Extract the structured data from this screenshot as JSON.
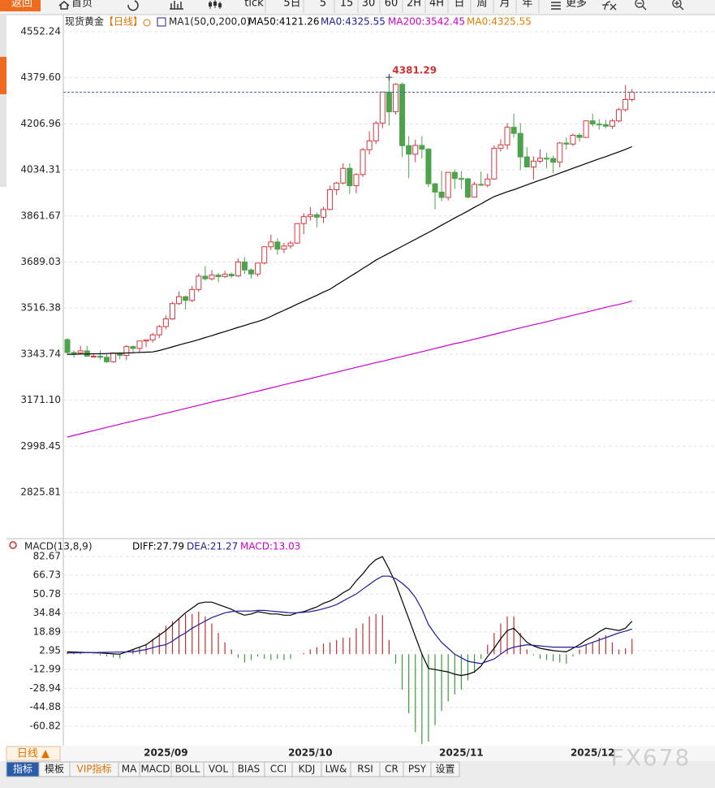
{
  "toolbar": {
    "back": "返回",
    "home": "首页",
    "buttons": [
      "tick",
      "5日",
      "5",
      "15",
      "30",
      "60",
      "2H",
      "4H",
      "日",
      "周",
      "月",
      "年"
    ],
    "more": "更多"
  },
  "chart_data": [
    {
      "type": "candlestick",
      "title": "现货黄金",
      "period": "【日线】",
      "indicator": "MA1(50,0,200,0)",
      "candles": {
        "open": [
          3398,
          3350,
          3348,
          3356,
          3336,
          3336,
          3332,
          3315,
          3348,
          3339,
          3372,
          3365,
          3393,
          3397,
          3416,
          3447,
          3476,
          3533,
          3559,
          3545,
          3586,
          3636,
          3626,
          3640,
          3634,
          3643,
          3637,
          3689,
          3659,
          3644,
          3685,
          3746,
          3764,
          3737,
          3749,
          3760,
          3833,
          3859,
          3866,
          3857,
          3886,
          3960,
          3985,
          4040,
          3975,
          4017,
          4110,
          4143,
          4209,
          4326,
          4252,
          4355,
          4125,
          4093,
          4126,
          4112,
          3982,
          3951,
          3931,
          4025,
          4002,
          4001,
          3932,
          3980,
          3977,
          4000,
          4115,
          4128,
          4194,
          4171,
          4083,
          4045,
          4067,
          4078,
          4077,
          4063,
          4135,
          4131,
          4164,
          4156,
          4218,
          4206,
          4204,
          4198,
          4218,
          4260,
          4298
        ],
        "high": [
          3404,
          3358,
          3375,
          3375,
          3345,
          3358,
          3345,
          3350,
          3351,
          3378,
          3376,
          3393,
          3398,
          3423,
          3453,
          3489,
          3540,
          3578,
          3563,
          3600,
          3646,
          3674,
          3658,
          3648,
          3656,
          3650,
          3703,
          3707,
          3665,
          3685,
          3749,
          3791,
          3778,
          3761,
          3768,
          3834,
          3872,
          3895,
          3875,
          3896,
          3975,
          3990,
          4059,
          4059,
          4022,
          4117,
          4179,
          4218,
          4327,
          4381.29,
          4359,
          4361,
          4161,
          4147,
          4161,
          4116,
          3986,
          4030,
          4025,
          4036,
          4030,
          4004,
          3990,
          4028,
          4020,
          4126,
          4149,
          4210,
          4245,
          4210,
          4120,
          4085,
          4111,
          4099,
          4088,
          4139,
          4156,
          4170,
          4172,
          4218,
          4245,
          4224,
          4222,
          4225,
          4266,
          4352,
          4337
        ],
        "low": [
          3341,
          3331,
          3343,
          3334,
          3330,
          3323,
          3311,
          3311,
          3325,
          3321,
          3351,
          3351,
          3370,
          3387,
          3403,
          3437,
          3472,
          3528,
          3511,
          3539,
          3577,
          3620,
          3620,
          3613,
          3630,
          3630,
          3633,
          3645,
          3627,
          3634,
          3680,
          3734,
          3717,
          3722,
          3739,
          3757,
          3793,
          3844,
          3819,
          3835,
          3883,
          3940,
          3980,
          3944,
          3947,
          4007,
          4092,
          4131,
          4191,
          4200,
          4242,
          4082,
          4003,
          4063,
          4077,
          3970,
          3886,
          3917,
          3920,
          3963,
          3962,
          3928,
          3930,
          3974,
          3969,
          3998,
          4103,
          4111,
          4155,
          4034,
          4045,
          3998,
          4060,
          4040,
          4022,
          4043,
          4110,
          4124,
          4140,
          4155,
          4196,
          4185,
          4190,
          4188,
          4212,
          4252,
          4290
        ],
        "close": [
          3350,
          3348,
          3356,
          3336,
          3336,
          3332,
          3315,
          3348,
          3339,
          3372,
          3365,
          3393,
          3397,
          3416,
          3447,
          3476,
          3533,
          3559,
          3545,
          3586,
          3636,
          3626,
          3640,
          3634,
          3643,
          3637,
          3689,
          3659,
          3644,
          3685,
          3746,
          3764,
          3737,
          3749,
          3760,
          3833,
          3859,
          3866,
          3857,
          3886,
          3960,
          3985,
          4040,
          3975,
          4017,
          4110,
          4143,
          4209,
          4326,
          4252,
          4355,
          4125,
          4093,
          4126,
          4112,
          3982,
          3951,
          3931,
          4025,
          4002,
          4001,
          3932,
          3980,
          3977,
          4000,
          4115,
          4128,
          4194,
          4171,
          4083,
          4045,
          4067,
          4078,
          4077,
          4063,
          4135,
          4131,
          4164,
          4156,
          4218,
          4206,
          4204,
          4198,
          4218,
          4260,
          4298,
          4325.55
        ]
      },
      "up_color": "#d9363e",
      "down_color": "#4ca34c",
      "series": [
        {
          "name": "MA50:4121.26",
          "color": "#000000",
          "values": [
            3343,
            3343,
            3344,
            3344,
            3345,
            3345,
            3346,
            3347,
            3347,
            3348,
            3349,
            3350,
            3351,
            3352,
            3357,
            3364,
            3371,
            3378,
            3385,
            3391,
            3398,
            3406,
            3413,
            3421,
            3428,
            3436,
            3444,
            3451,
            3459,
            3466,
            3474,
            3485,
            3497,
            3508,
            3519,
            3531,
            3542,
            3553,
            3564,
            3576,
            3587,
            3603,
            3618,
            3634,
            3649,
            3665,
            3680,
            3696,
            3709,
            3722,
            3735,
            3748,
            3761,
            3774,
            3787,
            3800,
            3813,
            3827,
            3840,
            3854,
            3867,
            3880,
            3894,
            3907,
            3921,
            3934,
            3943,
            3952,
            3960,
            3969,
            3978,
            3987,
            3996,
            4004,
            4013,
            4022,
            4031,
            4040,
            4049,
            4058,
            4067,
            4076,
            4084,
            4093,
            4102,
            4111,
            4121.26
          ]
        },
        {
          "name": "MA200:3542.45",
          "color": "#cc00cc",
          "values": [
            3033,
            3039,
            3045,
            3051,
            3057,
            3063,
            3069,
            3075,
            3081,
            3087,
            3093,
            3099,
            3104,
            3110,
            3116,
            3122,
            3128,
            3134,
            3140,
            3146,
            3152,
            3158,
            3164,
            3170,
            3175,
            3181,
            3187,
            3193,
            3199,
            3205,
            3211,
            3217,
            3223,
            3229,
            3235,
            3241,
            3246,
            3252,
            3258,
            3264,
            3270,
            3276,
            3282,
            3288,
            3294,
            3300,
            3306,
            3312,
            3317,
            3323,
            3329,
            3335,
            3341,
            3347,
            3353,
            3359,
            3365,
            3371,
            3377,
            3383,
            3388,
            3394,
            3400,
            3406,
            3412,
            3418,
            3424,
            3430,
            3436,
            3442,
            3448,
            3454,
            3459,
            3465,
            3471,
            3477,
            3483,
            3489,
            3495,
            3501,
            3507,
            3513,
            3519,
            3525,
            3530,
            3536,
            3542.45
          ]
        }
      ],
      "extra_legend": [
        {
          "text": "MA0:4325.55",
          "color": "#1c1c9c"
        },
        {
          "text": "MA0:4325.55",
          "color": "#e08000"
        }
      ],
      "high_annotation": 4381.29,
      "last_line_color": "#3a6ec0",
      "ylim": [
        2661.4,
        4616.2
      ],
      "yticks": [
        4552.24,
        {
          "value": 4379.6,
          "label": "4379.60"
        },
        4206.96,
        4034.31,
        3861.67,
        3689.03,
        3516.38,
        3343.74,
        {
          "value": 3171.1,
          "label": "3171.10"
        },
        2998.45,
        2825.81
      ],
      "grid": true
    },
    {
      "type": "macd",
      "title": "MACD(13,8,9)",
      "categories": [
        null,
        null,
        null,
        null,
        null,
        null,
        null,
        null,
        null,
        null,
        null,
        null,
        null,
        null,
        null,
        "2025/09",
        null,
        null,
        null,
        null,
        null,
        null,
        null,
        null,
        null,
        null,
        null,
        null,
        null,
        null,
        null,
        null,
        null,
        null,
        null,
        null,
        null,
        "2025/10",
        null,
        null,
        null,
        null,
        null,
        null,
        null,
        null,
        null,
        null,
        null,
        null,
        null,
        null,
        null,
        null,
        null,
        null,
        null,
        null,
        null,
        null,
        "2025/11",
        null,
        null,
        null,
        null,
        null,
        null,
        null,
        null,
        null,
        null,
        null,
        null,
        null,
        null,
        null,
        null,
        null,
        null,
        null,
        "2025/12",
        null,
        null,
        null,
        null,
        null,
        null
      ],
      "series": [
        {
          "name": "DIFF:27.79",
          "color": "#000000",
          "values": [
            2,
            1.8,
            1.6,
            1.4,
            1.2,
            1,
            0.7,
            0.3,
            0,
            2,
            4,
            6,
            8,
            12,
            16,
            20,
            25,
            30,
            35,
            39,
            43,
            44,
            44,
            42,
            40,
            38,
            35,
            33,
            34,
            36,
            35,
            34,
            34,
            33,
            33,
            35,
            36,
            38,
            40,
            43,
            45,
            48,
            52,
            55,
            62,
            68,
            75,
            80,
            82.5,
            72,
            60,
            45,
            30,
            15,
            0,
            -12,
            -13,
            -14,
            -15,
            -17,
            -18,
            -17,
            -15,
            -10,
            -2,
            5,
            13,
            20,
            22,
            16,
            10,
            7,
            5,
            4,
            3,
            2.5,
            2,
            5,
            8,
            12,
            15,
            19,
            22,
            21,
            20,
            22,
            27.79
          ]
        },
        {
          "name": "DEA:21.27",
          "color": "#1c1c9c",
          "values": [
            1,
            1.1,
            1.2,
            1.3,
            1.4,
            1.5,
            1.6,
            1.7,
            1.8,
            1.9,
            2,
            3,
            4,
            5.5,
            7,
            8,
            11,
            15,
            18,
            22,
            25,
            28,
            31,
            33,
            35,
            36,
            36.5,
            36.5,
            36.5,
            37,
            37,
            36.5,
            36,
            35.5,
            35,
            35,
            35.5,
            36,
            37,
            38.5,
            40,
            42,
            45,
            48,
            51,
            55,
            59,
            63,
            66,
            66,
            64,
            60,
            55,
            48,
            38,
            25,
            17,
            10,
            5,
            0,
            -3,
            -6,
            -7,
            -8,
            -6,
            -4,
            0,
            4,
            6,
            7,
            8,
            7.5,
            7,
            6.5,
            6,
            6,
            6,
            6,
            6,
            8,
            10,
            12,
            14,
            16,
            18,
            19.5,
            21.27
          ]
        },
        {
          "name": "MACD:13.03",
          "color": "#cc00cc",
          "type": "bar",
          "values": [
            2,
            1.4,
            0.8,
            0.2,
            -0.4,
            -1,
            -1.8,
            -2.8,
            -3.6,
            0.2,
            4,
            6,
            8,
            13,
            18,
            24,
            28,
            30,
            34,
            34,
            36,
            32,
            26,
            18,
            10,
            4,
            -3,
            -7,
            -5,
            -2,
            -4,
            -5,
            -4,
            -5,
            -4,
            0,
            1,
            4,
            6,
            9,
            10,
            12,
            14,
            14,
            22,
            26,
            32,
            34,
            33,
            12,
            -8,
            -30,
            -50,
            -66,
            -76,
            -74,
            -60,
            -48,
            -40,
            -34,
            -30,
            -22,
            -16,
            -4,
            8,
            18,
            26,
            32,
            32,
            18,
            4,
            -1,
            -4,
            -5,
            -6,
            -7,
            -8,
            -2,
            4,
            8,
            10,
            14,
            16,
            10,
            4,
            5,
            13.03
          ]
        }
      ],
      "up_color": "#b83232",
      "down_color": "#3c9a3c",
      "ylim": [
        -77.43,
        87.45
      ],
      "yticks": [
        82.67,
        66.73,
        50.78,
        34.84,
        18.89,
        2.95,
        -12.99,
        -28.94,
        -44.88,
        -60.82
      ],
      "grid": true
    }
  ],
  "bottom": {
    "period": "日线 ▲",
    "tabs": [
      "指标",
      "模板",
      "VIP指标",
      "MA",
      "MACD",
      "BOLL",
      "VOL",
      "BIAS",
      "CCI",
      "KDJ",
      "LW&",
      "RSI",
      "CR",
      "PSY",
      "设置"
    ]
  },
  "watermark": "FX678"
}
